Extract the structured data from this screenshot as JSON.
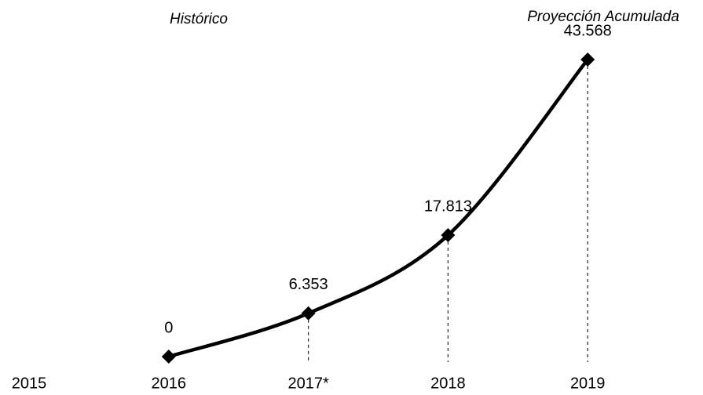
{
  "chart_data": {
    "type": "line",
    "annotations": [
      "Histórico",
      "Proyección Acumulada"
    ],
    "categories": [
      "2015",
      "2016",
      "2017*",
      "2018",
      "2019"
    ],
    "series": [
      {
        "color": "#000000",
        "values": [
          null,
          0,
          6353,
          17813,
          43568
        ],
        "value_labels": [
          null,
          "0",
          "6.353",
          "17.813",
          "43.568"
        ]
      }
    ]
  }
}
